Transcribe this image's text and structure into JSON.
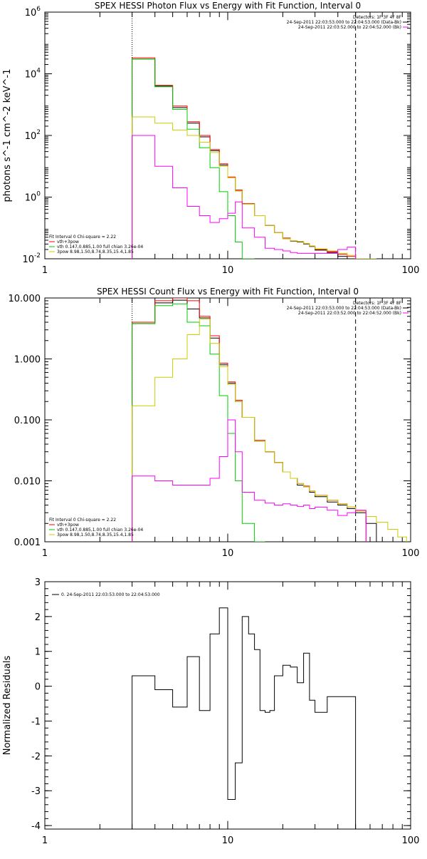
{
  "chart_data": [
    {
      "type": "line",
      "title": "SPEX HESSI Photon Flux vs Energy with Fit Function, Interval 0",
      "ylabel": "photons s^-1 cm^-2 keV^-1",
      "xlabel": "",
      "xscale": "log",
      "yscale": "log",
      "xlim": [
        1,
        100
      ],
      "ylim": [
        0.01,
        1000000
      ],
      "xticks": [
        {
          "v": 1,
          "t": "1"
        },
        {
          "v": 10,
          "t": "10"
        },
        {
          "v": 100,
          "t": "100"
        }
      ],
      "yticks": [
        {
          "v": 0.01,
          "b": "10",
          "e": "-2"
        },
        {
          "v": 1,
          "b": "10",
          "e": "0"
        },
        {
          "v": 100,
          "b": "10",
          "e": "2"
        },
        {
          "v": 10000,
          "b": "10",
          "e": "4"
        },
        {
          "v": 1000000,
          "b": "10",
          "e": "6"
        }
      ],
      "legend_top": {
        "header": "Detectors: 1F 3F 4F 8F",
        "lines": [
          {
            "text": "24-Sep-2011 22:03:53.000 to 22:04:53.000 (Data-Bk)",
            "color": "#000000"
          },
          {
            "text": "24-Sep-2011 22:03:52.000 to 22:04:52.000 (Bk)",
            "color": "#ff00ff"
          }
        ]
      },
      "legend_bottom": {
        "header": "Fit Interval 0   Chi-square = 2.22",
        "lines": [
          {
            "text": "vth+3pow",
            "color": "#ff0000"
          },
          {
            "text": "vth 0.147,0.885,1.00  full chian 3.26e-04",
            "color": "#00cc00"
          },
          {
            "text": "3pow 8.98,1.50,8.74,8.35,15.4,1.85",
            "color": "#cccc00"
          }
        ]
      },
      "vlines": [
        {
          "x": 3,
          "style": "dotted"
        },
        {
          "x": 50,
          "style": "dashed"
        }
      ],
      "edges": [
        3,
        4,
        5,
        6,
        7,
        8,
        9,
        10,
        11,
        12,
        14,
        16,
        18,
        20,
        22,
        24,
        26,
        28,
        30,
        35,
        40,
        45,
        50,
        57,
        65
      ],
      "series": [
        {
          "color": "#000000",
          "values": [
            30000,
            4000,
            800,
            250,
            90,
            32,
            11,
            4.2,
            1.6,
            0.6,
            0.25,
            0.12,
            0.07,
            0.045,
            0.037,
            0.035,
            0.03,
            0.025,
            0.019,
            0.016,
            0.012,
            0.009,
            null,
            null
          ]
        },
        {
          "color": "#ff0000",
          "values": [
            33000,
            4200,
            900,
            280,
            100,
            35,
            12,
            4.5,
            1.7,
            0.62,
            0.25,
            0.12,
            0.07,
            0.047,
            0.038,
            0.036,
            0.031,
            0.026,
            0.02,
            0.017,
            0.014,
            0.012,
            null,
            null
          ]
        },
        {
          "color": "#00cc00",
          "values": [
            30000,
            3800,
            700,
            160,
            40,
            9,
            1.5,
            0.25,
            0.035,
            0.001,
            null,
            null,
            null,
            null,
            null,
            null,
            null,
            null,
            null,
            null,
            null,
            null,
            null,
            null
          ]
        },
        {
          "color": "#cccc00",
          "values": [
            400,
            250,
            150,
            100,
            60,
            28,
            10,
            4.2,
            1.6,
            0.6,
            0.25,
            0.12,
            0.07,
            0.045,
            0.038,
            0.036,
            0.031,
            0.026,
            0.021,
            0.018,
            0.015,
            0.013,
            0.01,
            0.007
          ]
        },
        {
          "color": "#ff00ff",
          "values": [
            100,
            10,
            2,
            0.5,
            0.25,
            0.15,
            0.2,
            0.3,
            0.7,
            0.1,
            0.05,
            0.022,
            0.02,
            0.018,
            0.016,
            0.015,
            0.015,
            0.015,
            0.015,
            0.015,
            0.02,
            0.024,
            null,
            null
          ]
        }
      ]
    },
    {
      "type": "line",
      "title": "SPEX HESSI Count Flux vs Energy with Fit Function, Interval 0",
      "ylabel": "",
      "xlabel": "",
      "xscale": "log",
      "yscale": "log",
      "xlim": [
        1,
        100
      ],
      "ylim": [
        0.001,
        10
      ],
      "xticks": [
        {
          "v": 1,
          "t": "1"
        },
        {
          "v": 10,
          "t": "10"
        },
        {
          "v": 100,
          "t": "100"
        }
      ],
      "yticks": [
        {
          "v": 0.001,
          "t": "0.001"
        },
        {
          "v": 0.01,
          "t": "0.010"
        },
        {
          "v": 0.1,
          "t": "0.100"
        },
        {
          "v": 1,
          "t": "1.000"
        },
        {
          "v": 10,
          "t": "10.000"
        }
      ],
      "legend_top": {
        "header": "Detectors: 1F 3F 4F 8F",
        "lines": [
          {
            "text": "24-Sep-2011 22:03:53.000 to 22:04:53.000 (Data-Bk)",
            "color": "#000000"
          },
          {
            "text": "24-Sep-2011 22:03:52.000 to 22:04:52.000 (Bk)",
            "color": "#ff00ff"
          }
        ]
      },
      "legend_bottom": {
        "header": "Fit Interval 0   Chi-square = 2.22",
        "lines": [
          {
            "text": "vth+3pow",
            "color": "#ff0000"
          },
          {
            "text": "vth 0.147,0.885,1.00  full chian 3.26e-04",
            "color": "#00cc00"
          },
          {
            "text": "3pow 8.98,1.50,8.74,8.35,15.4,1.85",
            "color": "#cccc00"
          }
        ]
      },
      "vlines": [
        {
          "x": 3,
          "style": "dotted"
        },
        {
          "x": 50,
          "style": "dashed"
        }
      ],
      "edges": [
        3,
        4,
        5,
        6,
        7,
        8,
        9,
        10,
        11,
        12,
        14,
        16,
        18,
        20,
        22,
        24,
        26,
        28,
        30,
        35,
        40,
        45,
        50,
        57,
        65,
        75,
        85,
        95
      ],
      "series": [
        {
          "color": "#000000",
          "values": [
            3.8,
            8.3,
            9.2,
            6.6,
            4.7,
            2.2,
            0.8,
            0.4,
            0.2,
            0.11,
            0.045,
            0.03,
            0.02,
            0.014,
            0.011,
            0.0085,
            0.008,
            0.0065,
            0.0055,
            0.0045,
            0.004,
            0.0035,
            0.003,
            0.002,
            null,
            null,
            null
          ]
        },
        {
          "color": "#ff0000",
          "values": [
            4,
            9,
            10,
            9,
            5,
            2.4,
            0.85,
            0.42,
            0.21,
            0.11,
            0.046,
            0.03,
            0.02,
            0.014,
            0.011,
            0.009,
            0.0082,
            0.0068,
            0.0058,
            0.0048,
            0.0042,
            0.0037,
            0.0032,
            null,
            null,
            null,
            null
          ]
        },
        {
          "color": "#00cc00",
          "values": [
            3.8,
            7.5,
            8,
            4,
            3.5,
            1.2,
            0.25,
            0.06,
            0.01,
            0.002,
            0.001,
            null,
            null,
            null,
            null,
            null,
            null,
            null,
            null,
            null,
            null,
            null,
            null,
            null,
            null,
            null,
            null
          ]
        },
        {
          "color": "#cccc00",
          "values": [
            0.17,
            0.5,
            1,
            2.5,
            4.5,
            1.8,
            0.75,
            0.38,
            0.2,
            0.11,
            0.045,
            0.03,
            0.02,
            0.014,
            0.011,
            0.009,
            0.008,
            0.0068,
            0.0058,
            0.0048,
            0.0042,
            0.0037,
            0.0032,
            0.0026,
            0.0021,
            0.0016,
            0.0012
          ]
        },
        {
          "color": "#ff00ff",
          "values": [
            0.012,
            0.01,
            0.0085,
            0.0085,
            0.0085,
            0.011,
            0.025,
            0.1,
            0.03,
            0.0065,
            0.0048,
            0.0043,
            0.004,
            0.0042,
            0.004,
            0.0038,
            0.004,
            0.0035,
            0.0037,
            0.0033,
            0.0027,
            0.003,
            0.0033,
            null,
            null,
            null,
            null
          ]
        }
      ]
    },
    {
      "type": "line",
      "title": "",
      "ylabel": "Normalized Residuals",
      "xlabel": "",
      "xscale": "log",
      "yscale": "linear",
      "xlim": [
        1,
        100
      ],
      "ylim": [
        -4.1,
        3
      ],
      "xticks": [
        {
          "v": 1,
          "t": "1"
        },
        {
          "v": 10,
          "t": "10"
        },
        {
          "v": 100,
          "t": "100"
        }
      ],
      "yticks": [
        {
          "v": -4,
          "t": "-4"
        },
        {
          "v": -3,
          "t": "-3"
        },
        {
          "v": -2,
          "t": "-2"
        },
        {
          "v": -1,
          "t": "-1"
        },
        {
          "v": 0,
          "t": "0"
        },
        {
          "v": 1,
          "t": "1"
        },
        {
          "v": 2,
          "t": "2"
        },
        {
          "v": 3,
          "t": "3"
        }
      ],
      "legend_top": {
        "header": "",
        "lines": [
          {
            "text": "0. 24-Sep-2011 22:03:53.000 to 22:04:53.000",
            "color": "#000000"
          }
        ]
      },
      "vlines": [],
      "edges": [
        3,
        4,
        5,
        6,
        7,
        8,
        9,
        10,
        11,
        12,
        13,
        14,
        15,
        16,
        17,
        18,
        20,
        22,
        24,
        26,
        28,
        30,
        35,
        40,
        45,
        50
      ],
      "baseline": -4.1,
      "series": [
        {
          "color": "#000000",
          "values": [
            0.3,
            -0.1,
            -0.6,
            0.85,
            -0.7,
            1.5,
            2.25,
            -3.25,
            -2.2,
            2.0,
            1.5,
            1.05,
            -0.7,
            -0.75,
            -0.7,
            0.3,
            0.6,
            0.55,
            0.1,
            0.95,
            -0.4,
            -0.75,
            -0.3,
            -0.3,
            -0.3
          ]
        }
      ]
    }
  ]
}
